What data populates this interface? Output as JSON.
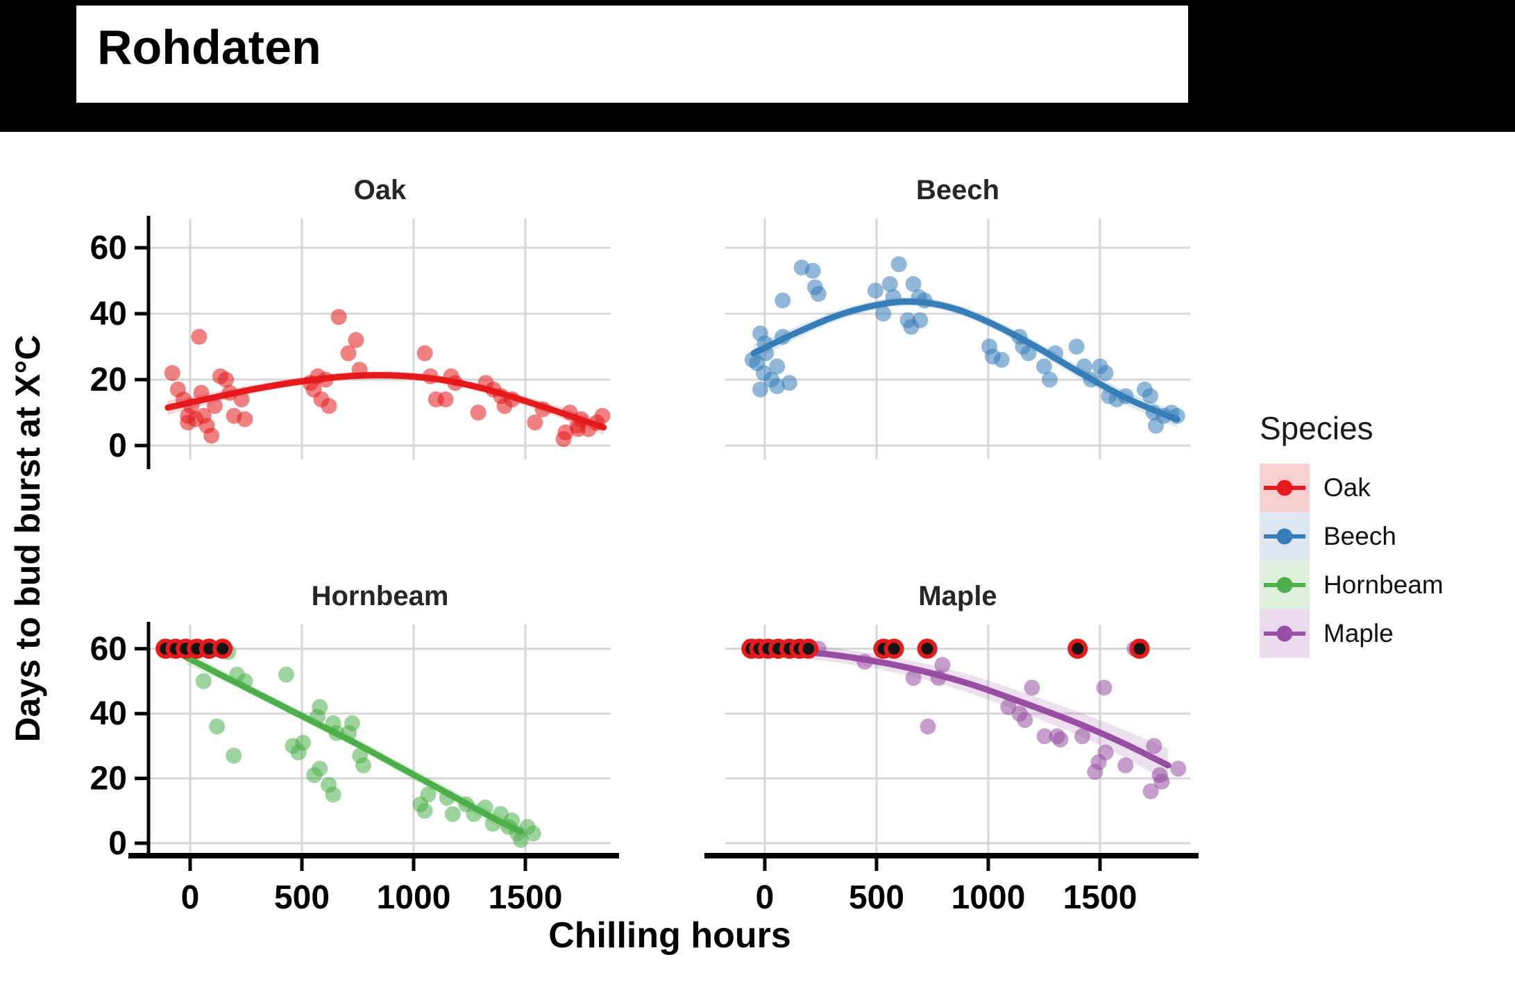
{
  "header": {
    "title": "Rohdaten"
  },
  "axes": {
    "x_title": "Chilling hours",
    "y_title": "Days to bud burst at X°C"
  },
  "legend": {
    "title": "Species",
    "items": [
      {
        "label": "Oak",
        "color": "#E41A1C",
        "bg": "#F8CFD0"
      },
      {
        "label": "Beech",
        "color": "#377EB8",
        "bg": "#DCE5F0"
      },
      {
        "label": "Hornbeam",
        "color": "#4DAF4A",
        "bg": "#DEF0DD"
      },
      {
        "label": "Maple",
        "color": "#984EA3",
        "bg": "#EADAEE"
      }
    ]
  },
  "chart_data": {
    "type": "scatter",
    "title": "Rohdaten",
    "facet_variable": "Species",
    "xlabel": "Chilling hours",
    "ylabel": "Days to bud burst at X°C",
    "x_ticks": [
      0,
      500,
      1000,
      1500
    ],
    "y_ticks": [
      0,
      20,
      40,
      60
    ],
    "xlim": [
      -180,
      1900
    ],
    "ylim": [
      -5,
      69
    ],
    "grid": true,
    "legend_position": "right",
    "point_alpha": 0.55,
    "smoother": "loess curve with confidence ribbon",
    "censored_marker": {
      "fill": "#141414",
      "outline": "#E41A1C",
      "y_value": 60
    },
    "facets": [
      {
        "name": "Oak",
        "color": "#E41A1C",
        "points": [
          [
            -80,
            22
          ],
          [
            -55,
            17
          ],
          [
            -30,
            14
          ],
          [
            -10,
            9
          ],
          [
            -10,
            7
          ],
          [
            5,
            12
          ],
          [
            25,
            8
          ],
          [
            40,
            33
          ],
          [
            50,
            16
          ],
          [
            60,
            9
          ],
          [
            75,
            6
          ],
          [
            95,
            3
          ],
          [
            110,
            12
          ],
          [
            135,
            21
          ],
          [
            160,
            20
          ],
          [
            177,
            16
          ],
          [
            196,
            9
          ],
          [
            230,
            14
          ],
          [
            245,
            8
          ],
          [
            537,
            19
          ],
          [
            553,
            17
          ],
          [
            571,
            21
          ],
          [
            587,
            14
          ],
          [
            606,
            20
          ],
          [
            621,
            12
          ],
          [
            665,
            39
          ],
          [
            708,
            28
          ],
          [
            742,
            32
          ],
          [
            758,
            23
          ],
          [
            1050,
            28
          ],
          [
            1075,
            21
          ],
          [
            1100,
            14
          ],
          [
            1143,
            14
          ],
          [
            1168,
            21
          ],
          [
            1186,
            19
          ],
          [
            1289,
            10
          ],
          [
            1323,
            19
          ],
          [
            1357,
            17
          ],
          [
            1391,
            15
          ],
          [
            1407,
            12
          ],
          [
            1441,
            14
          ],
          [
            1543,
            7
          ],
          [
            1578,
            11
          ],
          [
            1671,
            2
          ],
          [
            1680,
            4
          ],
          [
            1699,
            10
          ],
          [
            1733,
            6
          ],
          [
            1736,
            5
          ],
          [
            1749,
            8
          ],
          [
            1783,
            5
          ],
          [
            1820,
            7
          ],
          [
            1845,
            9
          ]
        ],
        "censored_x": [],
        "trend": [
          [
            -100,
            11.5,
            2.2
          ],
          [
            100,
            14.5,
            1.6
          ],
          [
            300,
            17.3,
            1.3
          ],
          [
            500,
            19.5,
            1.2
          ],
          [
            700,
            21,
            1.2
          ],
          [
            900,
            21.3,
            1.2
          ],
          [
            1100,
            20.2,
            1.2
          ],
          [
            1300,
            17.5,
            1.3
          ],
          [
            1500,
            13.5,
            1.5
          ],
          [
            1700,
            9,
            1.8
          ],
          [
            1850,
            5.5,
            2.2
          ]
        ]
      },
      {
        "name": "Beech",
        "color": "#377EB8",
        "points": [
          [
            -55,
            26
          ],
          [
            -35,
            25
          ],
          [
            -20,
            34
          ],
          [
            -20,
            17
          ],
          [
            -5,
            22
          ],
          [
            0,
            31
          ],
          [
            5,
            28
          ],
          [
            30,
            20
          ],
          [
            55,
            24
          ],
          [
            55,
            18
          ],
          [
            80,
            44
          ],
          [
            80,
            33
          ],
          [
            110,
            19
          ],
          [
            165,
            54
          ],
          [
            215,
            53
          ],
          [
            225,
            48
          ],
          [
            240,
            46
          ],
          [
            495,
            47
          ],
          [
            530,
            40
          ],
          [
            560,
            49
          ],
          [
            575,
            45
          ],
          [
            600,
            55
          ],
          [
            640,
            38
          ],
          [
            655,
            36
          ],
          [
            665,
            49
          ],
          [
            690,
            45
          ],
          [
            695,
            38
          ],
          [
            715,
            44
          ],
          [
            1005,
            30
          ],
          [
            1020,
            27
          ],
          [
            1060,
            26
          ],
          [
            1140,
            33
          ],
          [
            1155,
            30
          ],
          [
            1180,
            28
          ],
          [
            1250,
            24
          ],
          [
            1275,
            20
          ],
          [
            1300,
            28
          ],
          [
            1395,
            30
          ],
          [
            1430,
            24
          ],
          [
            1460,
            20
          ],
          [
            1500,
            24
          ],
          [
            1525,
            22
          ],
          [
            1540,
            15
          ],
          [
            1575,
            14
          ],
          [
            1615,
            15
          ],
          [
            1700,
            17
          ],
          [
            1725,
            15
          ],
          [
            1740,
            10
          ],
          [
            1750,
            6
          ],
          [
            1785,
            9
          ],
          [
            1820,
            10
          ],
          [
            1845,
            9
          ]
        ],
        "censored_x": [],
        "trend": [
          [
            -50,
            28,
            2.6
          ],
          [
            150,
            34.5,
            1.8
          ],
          [
            350,
            40,
            1.5
          ],
          [
            550,
            43.2,
            1.4
          ],
          [
            700,
            43.5,
            1.4
          ],
          [
            850,
            41.5,
            1.4
          ],
          [
            1000,
            37.5,
            1.5
          ],
          [
            1200,
            30.5,
            1.6
          ],
          [
            1400,
            22.5,
            1.8
          ],
          [
            1600,
            15,
            2
          ],
          [
            1750,
            10.5,
            2.3
          ],
          [
            1845,
            8,
            2.6
          ]
        ]
      },
      {
        "name": "Hornbeam",
        "color": "#4DAF4A",
        "points": [
          [
            60,
            50
          ],
          [
            120,
            36
          ],
          [
            170,
            59
          ],
          [
            195,
            27
          ],
          [
            210,
            52
          ],
          [
            245,
            50
          ],
          [
            430,
            52
          ],
          [
            460,
            30
          ],
          [
            485,
            28
          ],
          [
            505,
            31
          ],
          [
            555,
            21
          ],
          [
            570,
            39
          ],
          [
            580,
            42
          ],
          [
            580,
            23
          ],
          [
            620,
            18
          ],
          [
            640,
            37
          ],
          [
            640,
            15
          ],
          [
            655,
            34
          ],
          [
            710,
            34
          ],
          [
            725,
            37
          ],
          [
            760,
            27
          ],
          [
            775,
            24
          ],
          [
            1030,
            12
          ],
          [
            1050,
            10
          ],
          [
            1065,
            15
          ],
          [
            1150,
            14
          ],
          [
            1175,
            9
          ],
          [
            1235,
            12
          ],
          [
            1270,
            9
          ],
          [
            1320,
            11
          ],
          [
            1355,
            6
          ],
          [
            1390,
            9
          ],
          [
            1425,
            5
          ],
          [
            1440,
            7
          ],
          [
            1465,
            3
          ],
          [
            1480,
            1
          ],
          [
            1510,
            5
          ],
          [
            1535,
            3
          ]
        ],
        "censored_x": [
          -110,
          -65,
          -20,
          30,
          85,
          145
        ],
        "trend": [
          [
            -20,
            57.5,
            2.2
          ],
          [
            150,
            51.5,
            1.6
          ],
          [
            350,
            44.5,
            1.4
          ],
          [
            550,
            37.5,
            1.4
          ],
          [
            750,
            30.5,
            1.5
          ],
          [
            950,
            23,
            1.6
          ],
          [
            1150,
            15.5,
            1.8
          ],
          [
            1350,
            8,
            2
          ],
          [
            1480,
            3.5,
            2.3
          ]
        ]
      },
      {
        "name": "Maple",
        "color": "#984EA3",
        "points": [
          [
            240,
            60
          ],
          [
            447,
            56
          ],
          [
            665,
            51
          ],
          [
            730,
            36
          ],
          [
            777,
            51
          ],
          [
            795,
            55
          ],
          [
            1090,
            42
          ],
          [
            1140,
            40
          ],
          [
            1164,
            38
          ],
          [
            1196,
            48
          ],
          [
            1252,
            33
          ],
          [
            1308,
            33
          ],
          [
            1323,
            32
          ],
          [
            1421,
            33
          ],
          [
            1478,
            22
          ],
          [
            1494,
            25
          ],
          [
            1519,
            48
          ],
          [
            1525,
            28
          ],
          [
            1614,
            24
          ],
          [
            1655,
            60
          ],
          [
            1727,
            16
          ],
          [
            1742,
            30
          ],
          [
            1767,
            21
          ],
          [
            1776,
            19
          ],
          [
            1850,
            23
          ]
        ],
        "censored_x": [
          -60,
          -25,
          15,
          60,
          110,
          155,
          195,
          531,
          578,
          727,
          1400,
          1677
        ],
        "trend": [
          [
            -90,
            60.5,
            2.8
          ],
          [
            150,
            59.3,
            2.2
          ],
          [
            400,
            57.2,
            2.2
          ],
          [
            650,
            54,
            2.4
          ],
          [
            900,
            49.5,
            2.8
          ],
          [
            1150,
            43.5,
            3.2
          ],
          [
            1400,
            37,
            3.6
          ],
          [
            1600,
            31,
            4.2
          ],
          [
            1805,
            24,
            5.2
          ]
        ]
      }
    ]
  }
}
